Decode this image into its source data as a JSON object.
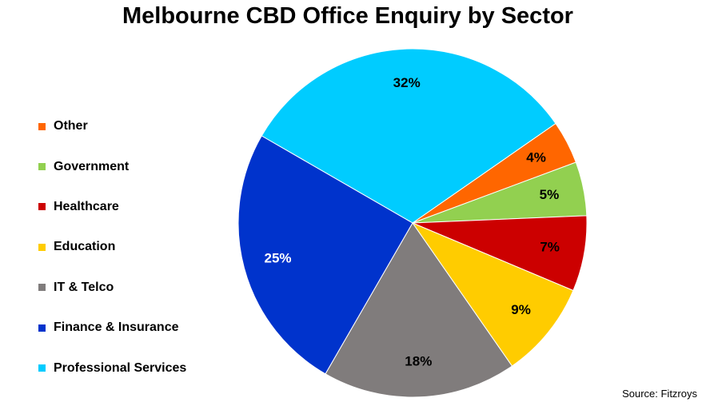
{
  "chart_data": {
    "type": "pie",
    "title": "Melbourne CBD Office Enquiry by Sector",
    "legend_position": "left",
    "slices": [
      {
        "label": "Professional Services",
        "value": 32,
        "value_label": "32%",
        "color": "#00CCFF",
        "label_color": "#000000"
      },
      {
        "label": "Other",
        "value": 4,
        "value_label": "4%",
        "color": "#FF6600",
        "label_color": "#000000"
      },
      {
        "label": "Government",
        "value": 5,
        "value_label": "5%",
        "color": "#92D050",
        "label_color": "#000000"
      },
      {
        "label": "Healthcare",
        "value": 7,
        "value_label": "7%",
        "color": "#CC0000",
        "label_color": "#000000"
      },
      {
        "label": "Education",
        "value": 9,
        "value_label": "9%",
        "color": "#FFCC00",
        "label_color": "#000000"
      },
      {
        "label": "IT & Telco",
        "value": 18,
        "value_label": "18%",
        "color": "#807C7C",
        "label_color": "#000000"
      },
      {
        "label": "Finance & Insurance",
        "value": 25,
        "value_label": "25%",
        "color": "#0033CC",
        "label_color": "#FFFFFF"
      }
    ],
    "legend": [
      {
        "label": "Other",
        "color": "#FF6600"
      },
      {
        "label": "Government",
        "color": "#92D050"
      },
      {
        "label": "Healthcare",
        "color": "#CC0000"
      },
      {
        "label": "Education",
        "color": "#FFCC00"
      },
      {
        "label": "IT & Telco",
        "color": "#807C7C"
      },
      {
        "label": "Finance & Insurance",
        "color": "#0033CC"
      },
      {
        "label": "Professional Services",
        "color": "#00CCFF"
      }
    ],
    "source": "Source: Fitzroys"
  }
}
